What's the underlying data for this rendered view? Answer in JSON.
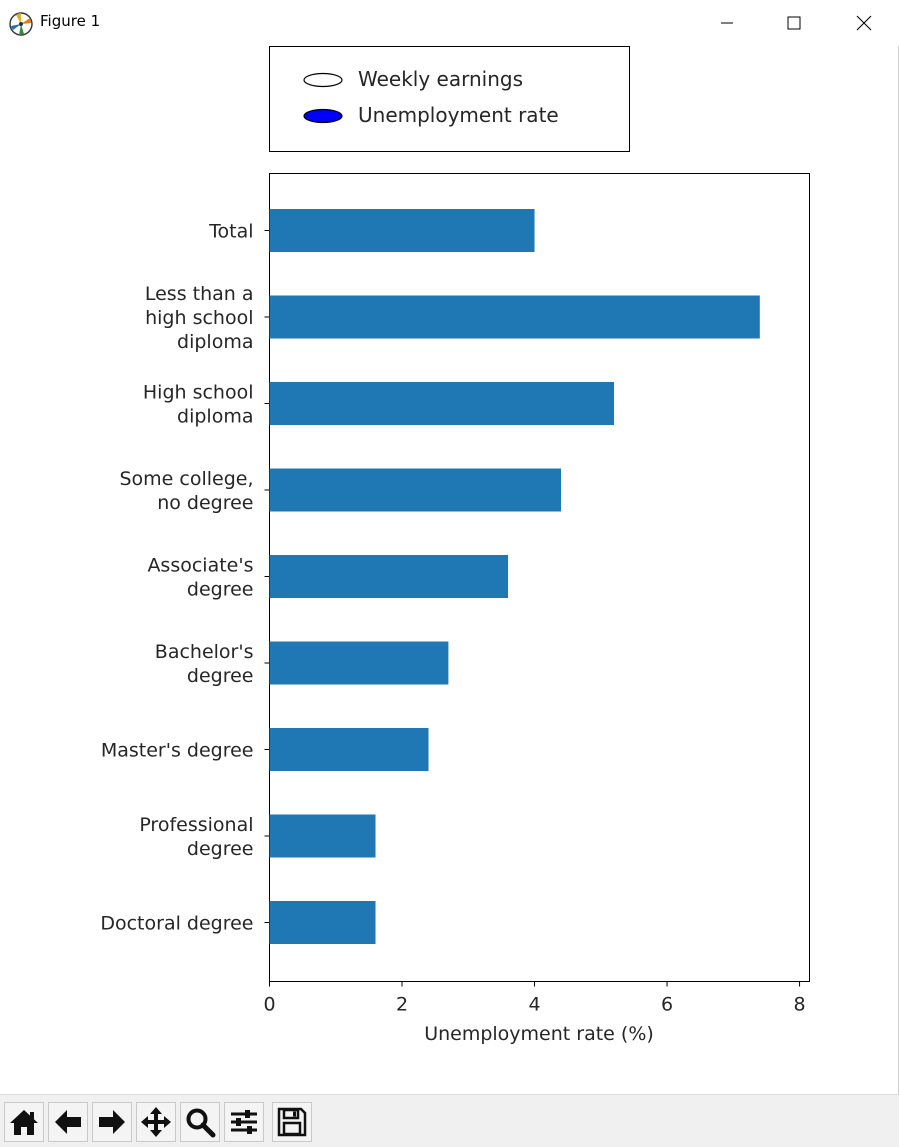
{
  "window": {
    "title": "Figure 1",
    "icon": "matplotlib-icon",
    "controls": [
      {
        "name": "minimize-icon"
      },
      {
        "name": "maximize-icon"
      },
      {
        "name": "close-icon"
      }
    ]
  },
  "toolbar": {
    "buttons": [
      {
        "name": "home-icon",
        "label": "Home"
      },
      {
        "name": "back-arrow-icon",
        "label": "Back"
      },
      {
        "name": "forward-arrow-icon",
        "label": "Forward"
      },
      {
        "name": "pan-icon",
        "label": "Pan"
      },
      {
        "name": "zoom-icon",
        "label": "Zoom"
      },
      {
        "name": "configure-subplots-icon",
        "label": "Subplots"
      },
      {
        "name": "save-icon",
        "label": "Save"
      }
    ]
  },
  "legend": {
    "items": [
      {
        "label": "Weekly earnings",
        "fill": "#ffffff"
      },
      {
        "label": "Unemployment rate",
        "fill": "#0000ff"
      }
    ],
    "placement": "top-center, outside axes"
  },
  "chart_data": {
    "type": "bar",
    "orientation": "horizontal",
    "categories": [
      [
        "Total"
      ],
      [
        "Less than a",
        "high school",
        "diploma"
      ],
      [
        "High school",
        "diploma"
      ],
      [
        "Some college,",
        "no degree"
      ],
      [
        "Associate's",
        "degree"
      ],
      [
        "Bachelor's",
        "degree"
      ],
      [
        "Master's degree"
      ],
      [
        "Professional",
        "degree"
      ],
      [
        "Doctoral degree"
      ]
    ],
    "values": [
      4.0,
      7.4,
      5.2,
      4.4,
      3.6,
      2.7,
      2.4,
      1.6,
      1.6
    ],
    "bar_color": "#1f77b4",
    "xlabel": "Unemployment rate (%)",
    "ylabel": "",
    "xlim": [
      0,
      8.15
    ],
    "xticks": [
      0,
      2,
      4,
      6,
      8
    ],
    "grid": false
  }
}
